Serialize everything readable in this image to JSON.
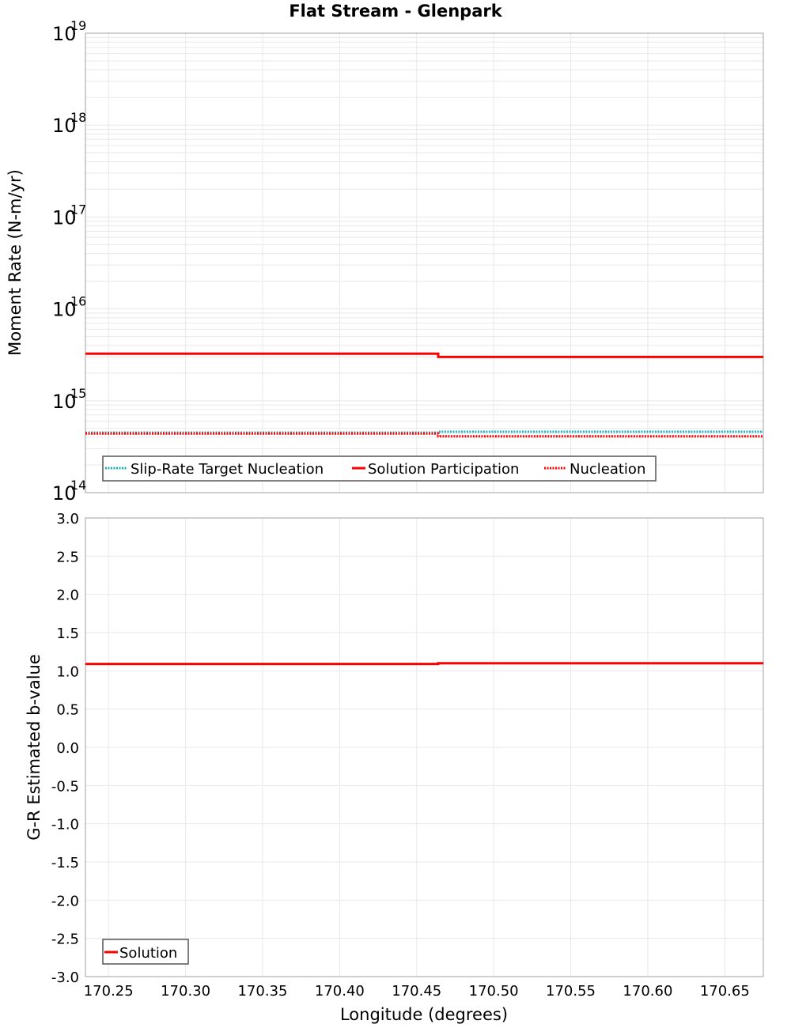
{
  "title": "Flat Stream - Glenpark",
  "colors": {
    "solution": "#ff0000",
    "target": "#20b0c0",
    "nucleation": "#ff0000",
    "grid": "#e8e8e8",
    "frame": "#a0a0a0"
  },
  "chart_data": [
    {
      "type": "line",
      "title": "Flat Stream - Glenpark",
      "xlabel": "Longitude (degrees)",
      "ylabel": "Moment Rate (N-m/yr)",
      "yscale": "log",
      "ylim": [
        100000000000000.0,
        1e+19
      ],
      "xlim": [
        170.235,
        170.675
      ],
      "y_ticks": [
        "10^14",
        "10^15",
        "10^16",
        "10^17",
        "10^18",
        "10^19"
      ],
      "grid": true,
      "legend_position": "lower-left",
      "series": [
        {
          "name": "Slip-Rate Target Nucleation",
          "style": "dotted",
          "color": "#20b0c0",
          "x": [
            170.235,
            170.464,
            170.464,
            170.675
          ],
          "values": [
            450000000000000.0,
            450000000000000.0,
            460000000000000.0,
            460000000000000.0
          ]
        },
        {
          "name": "Solution Participation",
          "style": "solid",
          "color": "#ff0000",
          "x": [
            170.235,
            170.464,
            170.464,
            170.675
          ],
          "values": [
            3250000000000000.0,
            3250000000000000.0,
            3000000000000000.0,
            3000000000000000.0
          ]
        },
        {
          "name": "Nucleation",
          "style": "dotted",
          "color": "#ff0000",
          "x": [
            170.235,
            170.464,
            170.464,
            170.675
          ],
          "values": [
            440000000000000.0,
            440000000000000.0,
            410000000000000.0,
            410000000000000.0
          ]
        }
      ]
    },
    {
      "type": "line",
      "xlabel": "Longitude (degrees)",
      "ylabel": "G-R Estimated b-value",
      "ylim": [
        -3.0,
        3.0
      ],
      "xlim": [
        170.235,
        170.675
      ],
      "y_ticks": [
        "3.0",
        "2.5",
        "2.0",
        "1.5",
        "1.0",
        "0.5",
        "0.0",
        "-0.5",
        "-1.0",
        "-1.5",
        "-2.0",
        "-2.5",
        "-3.0"
      ],
      "x_ticks": [
        "170.25",
        "170.30",
        "170.35",
        "170.40",
        "170.45",
        "170.50",
        "170.55",
        "170.60",
        "170.65"
      ],
      "grid": true,
      "legend_position": "lower-left",
      "series": [
        {
          "name": "Solution",
          "style": "solid",
          "color": "#ff0000",
          "x": [
            170.235,
            170.464,
            170.464,
            170.675
          ],
          "values": [
            1.09,
            1.09,
            1.1,
            1.1
          ]
        }
      ]
    }
  ],
  "top_plot": {
    "ylabel": "Moment Rate (N-m/yr)",
    "y_tick_base": "10",
    "y_tick_exponents": [
      "19",
      "18",
      "17",
      "16",
      "15",
      "14"
    ],
    "legend": [
      "Slip-Rate Target Nucleation",
      "Solution Participation",
      "Nucleation"
    ]
  },
  "bottom_plot": {
    "ylabel": "G-R Estimated b-value",
    "y_ticks": [
      "3.0",
      "2.5",
      "2.0",
      "1.5",
      "1.0",
      "0.5",
      "0.0",
      "-0.5",
      "-1.0",
      "-1.5",
      "-2.0",
      "-2.5",
      "-3.0"
    ],
    "legend": [
      "Solution"
    ]
  },
  "x_axis": {
    "label": "Longitude (degrees)",
    "ticks": [
      "170.25",
      "170.30",
      "170.35",
      "170.40",
      "170.45",
      "170.50",
      "170.55",
      "170.60",
      "170.65"
    ]
  }
}
